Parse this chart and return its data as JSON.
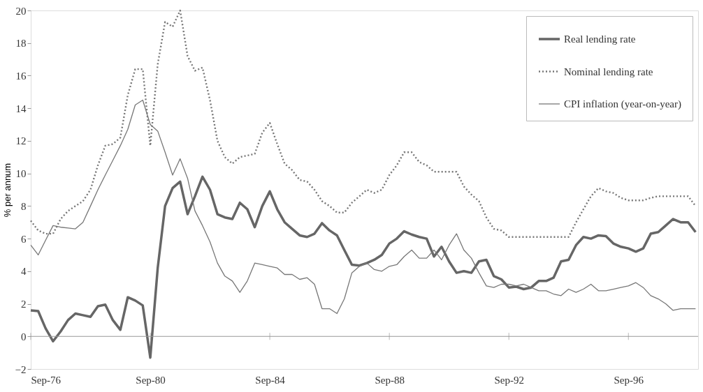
{
  "chart_data": {
    "type": "line",
    "ylabel": "% per annum",
    "x": [
      "1976-09",
      "1976-12",
      "1977-03",
      "1977-06",
      "1977-09",
      "1977-12",
      "1978-03",
      "1978-06",
      "1978-09",
      "1978-12",
      "1979-03",
      "1979-06",
      "1979-09",
      "1979-12",
      "1980-03",
      "1980-06",
      "1980-09",
      "1980-12",
      "1981-03",
      "1981-06",
      "1981-09",
      "1981-12",
      "1982-03",
      "1982-06",
      "1982-09",
      "1982-12",
      "1983-03",
      "1983-06",
      "1983-09",
      "1983-12",
      "1984-03",
      "1984-06",
      "1984-09",
      "1984-12",
      "1985-03",
      "1985-06",
      "1985-09",
      "1985-12",
      "1986-03",
      "1986-06",
      "1986-09",
      "1986-12",
      "1987-03",
      "1987-06",
      "1987-09",
      "1987-12",
      "1988-03",
      "1988-06",
      "1988-09",
      "1988-12",
      "1989-03",
      "1989-06",
      "1989-09",
      "1989-12",
      "1990-03",
      "1990-06",
      "1990-09",
      "1990-12",
      "1991-03",
      "1991-06",
      "1991-09",
      "1991-12",
      "1992-03",
      "1992-06",
      "1992-09",
      "1992-12",
      "1993-03",
      "1993-06",
      "1993-09",
      "1993-12",
      "1994-03",
      "1994-06",
      "1994-09",
      "1994-12",
      "1995-03",
      "1995-06",
      "1995-09",
      "1995-12",
      "1996-03",
      "1996-06",
      "1996-09",
      "1996-12",
      "1997-03",
      "1997-06",
      "1997-09",
      "1997-12",
      "1998-03",
      "1998-06",
      "1998-09",
      "1998-12"
    ],
    "series": [
      {
        "name": "Real lending rate",
        "color": "#666666",
        "line_style": "solid",
        "values": [
          1.6,
          1.55,
          0.5,
          -0.3,
          0.3,
          1.0,
          1.4,
          1.3,
          1.2,
          1.85,
          1.95,
          1.0,
          0.4,
          2.4,
          2.2,
          1.9,
          -1.3,
          4.2,
          8.0,
          9.1,
          9.5,
          7.5,
          8.6,
          9.8,
          9.0,
          7.5,
          7.3,
          7.2,
          8.2,
          7.8,
          6.7,
          8.0,
          8.9,
          7.8,
          7.0,
          6.6,
          6.2,
          6.1,
          6.3,
          6.95,
          6.5,
          6.2,
          5.3,
          4.4,
          4.35,
          4.5,
          4.7,
          5.0,
          5.7,
          6.0,
          6.45,
          6.25,
          6.1,
          6.0,
          4.9,
          5.5,
          4.6,
          3.9,
          4.0,
          3.9,
          4.6,
          4.7,
          3.7,
          3.5,
          3.0,
          3.05,
          2.9,
          3.0,
          3.4,
          3.4,
          3.6,
          4.6,
          4.7,
          5.6,
          6.1,
          6.0,
          6.2,
          6.15,
          5.7,
          5.5,
          5.4,
          5.2,
          5.4,
          6.3,
          6.4,
          6.8,
          7.2,
          7.0,
          7.0,
          6.4
        ]
      },
      {
        "name": "Nominal lending rate",
        "color": "#777777",
        "line_style": "dotted",
        "values": [
          7.1,
          6.5,
          6.3,
          6.3,
          7.2,
          7.7,
          8.0,
          8.3,
          9.0,
          10.5,
          11.7,
          11.8,
          12.2,
          14.8,
          16.4,
          16.4,
          11.7,
          16.7,
          19.3,
          19.0,
          20.0,
          17.2,
          16.3,
          16.5,
          14.5,
          12.0,
          11.0,
          10.6,
          11.0,
          11.1,
          11.2,
          12.5,
          13.1,
          11.8,
          10.6,
          10.2,
          9.6,
          9.5,
          9.0,
          8.3,
          8.0,
          7.6,
          7.6,
          8.2,
          8.6,
          9.0,
          8.8,
          9.0,
          9.9,
          10.5,
          11.3,
          11.3,
          10.7,
          10.5,
          10.1,
          10.1,
          10.1,
          10.1,
          9.2,
          8.7,
          8.3,
          7.3,
          6.6,
          6.5,
          6.1,
          6.1,
          6.1,
          6.1,
          6.1,
          6.1,
          6.1,
          6.1,
          6.1,
          7.0,
          7.8,
          8.6,
          9.1,
          8.9,
          8.8,
          8.5,
          8.35,
          8.35,
          8.35,
          8.5,
          8.6,
          8.6,
          8.6,
          8.6,
          8.6,
          8.0
        ]
      },
      {
        "name": "CPI inflation (year-on-year)",
        "color": "#777777",
        "line_style": "solid",
        "values": [
          5.6,
          5.0,
          5.9,
          6.8,
          6.7,
          6.65,
          6.6,
          7.0,
          8.0,
          9.0,
          9.9,
          10.8,
          11.7,
          12.7,
          14.2,
          14.5,
          13.0,
          12.6,
          11.3,
          9.9,
          10.9,
          9.7,
          7.7,
          6.8,
          5.8,
          4.5,
          3.7,
          3.4,
          2.7,
          3.4,
          4.5,
          4.4,
          4.3,
          4.2,
          3.8,
          3.8,
          3.5,
          3.6,
          3.2,
          1.7,
          1.7,
          1.4,
          2.3,
          3.9,
          4.3,
          4.5,
          4.1,
          4.0,
          4.3,
          4.4,
          4.9,
          5.3,
          4.8,
          4.8,
          5.3,
          4.7,
          5.6,
          6.3,
          5.3,
          4.8,
          3.9,
          3.1,
          3.0,
          3.2,
          3.2,
          3.1,
          3.2,
          3.0,
          2.8,
          2.8,
          2.6,
          2.5,
          2.9,
          2.7,
          2.9,
          3.2,
          2.8,
          2.8,
          2.9,
          3.0,
          3.1,
          3.3,
          3.0,
          2.5,
          2.3,
          2.0,
          1.6,
          1.7,
          1.7,
          1.7
        ]
      }
    ],
    "xlim": [
      "1976-09",
      "1999-01"
    ],
    "xticks": [
      {
        "value": "1976-09",
        "label": "Sep-76"
      },
      {
        "value": "1980-09",
        "label": "Sep-80"
      },
      {
        "value": "1984-09",
        "label": "Sep-84"
      },
      {
        "value": "1988-09",
        "label": "Sep-88"
      },
      {
        "value": "1992-09",
        "label": "Sep-92"
      },
      {
        "value": "1996-09",
        "label": "Sep-96"
      }
    ],
    "ylim": [
      -2,
      20
    ],
    "yticks": [
      -2,
      0,
      2,
      4,
      6,
      8,
      10,
      12,
      14,
      16,
      18,
      20
    ],
    "ref_lines": [
      {
        "axis": "y",
        "value": 0,
        "color": "#999999"
      }
    ],
    "grid": false,
    "legend": "top right"
  }
}
